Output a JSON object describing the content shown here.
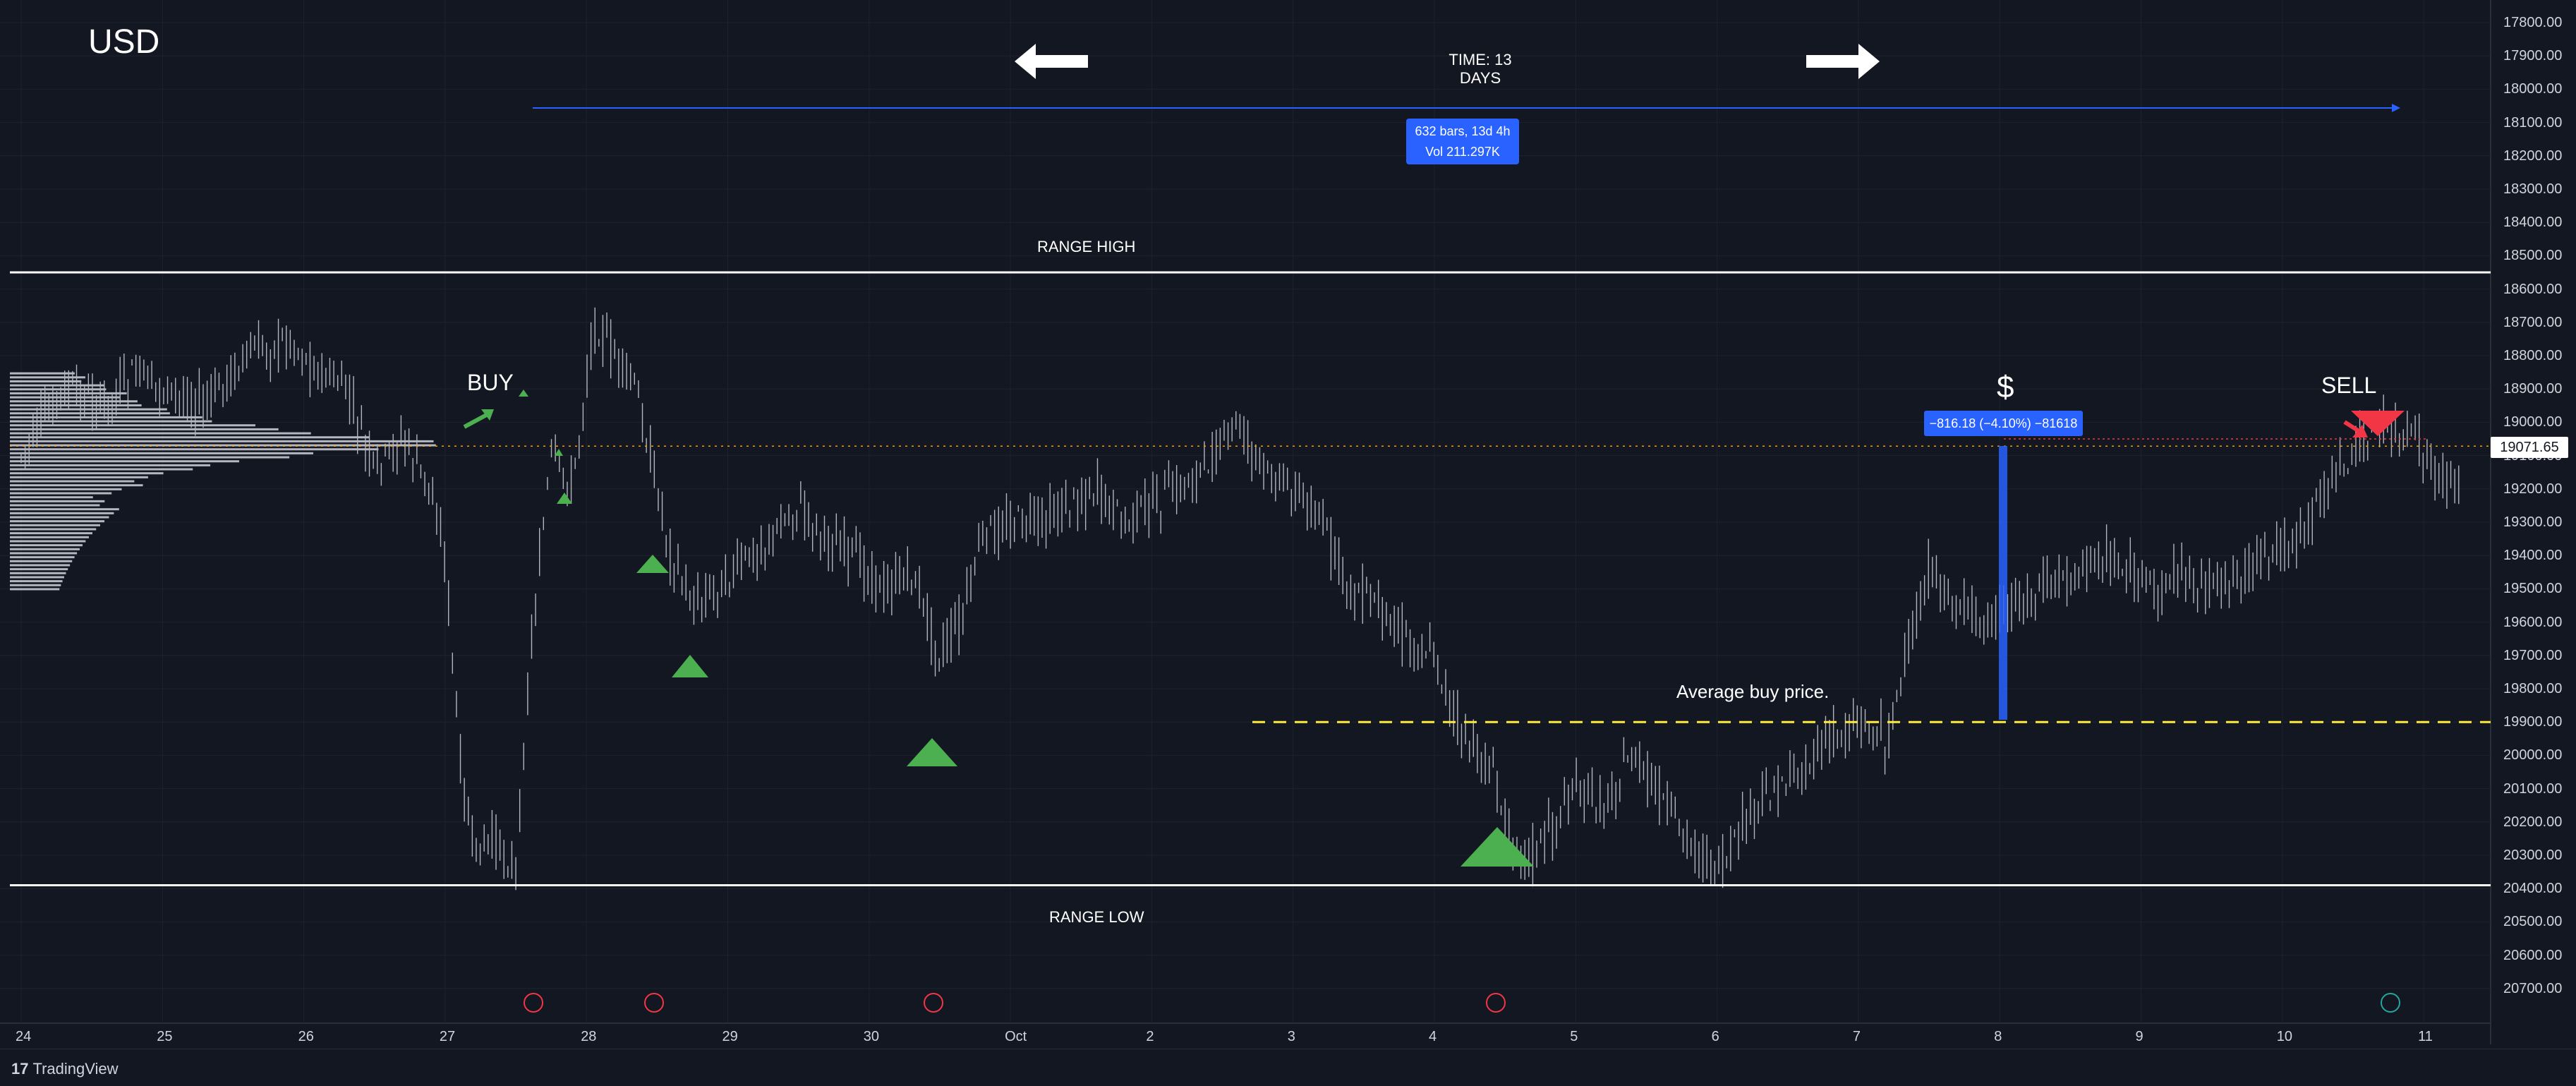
{
  "symbol": "USD",
  "measure": {
    "time_label": "TIME: 13 DAYS",
    "bars_label": "632 bars, 13d 4h",
    "volume_label": "Vol 211.297K",
    "left_arrow_icon": "arrow-left-icon",
    "right_arrow_icon": "arrow-right-icon"
  },
  "annotations": {
    "range_high": "RANGE HIGH",
    "range_low": "RANGE LOW",
    "buy": "BUY",
    "sell": "SELL",
    "dollar": "$",
    "average_buy_price": "Average buy price.",
    "pnl_label": "−816.18 (−4.10%) −81618"
  },
  "price_axis": {
    "ticks": [
      "17800.00",
      "17900.00",
      "18000.00",
      "18100.00",
      "18200.00",
      "18300.00",
      "18400.00",
      "18500.00",
      "18600.00",
      "18700.00",
      "18800.00",
      "18900.00",
      "19000.00",
      "19100.00",
      "19200.00",
      "19300.00",
      "19400.00",
      "19500.00",
      "19600.00",
      "19700.00",
      "19800.00",
      "19900.00",
      "20000.00",
      "20100.00",
      "20200.00",
      "20300.00",
      "20400.00",
      "20500.00",
      "20600.00",
      "20700.00"
    ],
    "last_price": "19071.65"
  },
  "time_axis": {
    "ticks": [
      "24",
      "25",
      "26",
      "27",
      "28",
      "29",
      "30",
      "Oct",
      "2",
      "3",
      "4",
      "5",
      "6",
      "7",
      "8",
      "9",
      "10",
      "11"
    ]
  },
  "footer": {
    "brand": "TradingView",
    "logo_mark": "17"
  },
  "colors": {
    "background": "#131722",
    "candle": "#b2b5be",
    "buy_marker": "#4caf50",
    "sell_marker": "#f23645",
    "avg_line": "#ffeb3b",
    "accent": "#2962ff",
    "level_line": "#ffffff",
    "event_red": "#f23645",
    "event_green": "#26a69a"
  },
  "chart_data": {
    "type": "candlestick",
    "axis": "inverted-price",
    "ylim": [
      17800,
      20750
    ],
    "x_categories": [
      "24",
      "25",
      "26",
      "27",
      "28",
      "29",
      "30",
      "Oct",
      "2",
      "3",
      "4",
      "5",
      "6",
      "7",
      "8",
      "9",
      "10",
      "11"
    ],
    "levels": {
      "range_high": 18550,
      "range_low": 20390,
      "average_buy_price": 19900,
      "last_price": 19071.65,
      "pnl": -816.18,
      "pnl_percent": -4.1
    },
    "close_path": [
      [
        0,
        19100
      ],
      [
        0.3,
        18900
      ],
      [
        0.6,
        18950
      ],
      [
        0.8,
        18850
      ],
      [
        1.0,
        18900
      ],
      [
        1.3,
        18950
      ],
      [
        1.6,
        18800
      ],
      [
        1.9,
        18750
      ],
      [
        2.1,
        18850
      ],
      [
        2.3,
        18900
      ],
      [
        2.5,
        19150
      ],
      [
        2.7,
        19050
      ],
      [
        2.9,
        19200
      ],
      [
        3.0,
        19400
      ],
      [
        3.1,
        20000
      ],
      [
        3.2,
        20300
      ],
      [
        3.35,
        20250
      ],
      [
        3.5,
        20350
      ],
      [
        3.6,
        19700
      ],
      [
        3.75,
        19100
      ],
      [
        3.9,
        19200
      ],
      [
        4.05,
        18700
      ],
      [
        4.2,
        18800
      ],
      [
        4.35,
        18900
      ],
      [
        4.5,
        19200
      ],
      [
        4.6,
        19400
      ],
      [
        4.75,
        19550
      ],
      [
        4.9,
        19500
      ],
      [
        5.05,
        19450
      ],
      [
        5.3,
        19350
      ],
      [
        5.5,
        19250
      ],
      [
        5.7,
        19350
      ],
      [
        5.9,
        19400
      ],
      [
        6.1,
        19500
      ],
      [
        6.3,
        19450
      ],
      [
        6.5,
        19700
      ],
      [
        6.65,
        19600
      ],
      [
        6.8,
        19350
      ],
      [
        7.0,
        19300
      ],
      [
        7.2,
        19300
      ],
      [
        7.4,
        19250
      ],
      [
        7.6,
        19200
      ],
      [
        7.8,
        19300
      ],
      [
        8.0,
        19250
      ],
      [
        8.2,
        19200
      ],
      [
        8.45,
        19100
      ],
      [
        8.6,
        19000
      ],
      [
        8.8,
        19150
      ],
      [
        9.0,
        19200
      ],
      [
        9.2,
        19300
      ],
      [
        9.4,
        19500
      ],
      [
        9.6,
        19550
      ],
      [
        9.8,
        19650
      ],
      [
        10.0,
        19700
      ],
      [
        10.2,
        19950
      ],
      [
        10.4,
        20050
      ],
      [
        10.55,
        20250
      ],
      [
        10.7,
        20300
      ],
      [
        10.85,
        20200
      ],
      [
        11.0,
        20100
      ],
      [
        11.2,
        20150
      ],
      [
        11.4,
        20000
      ],
      [
        11.55,
        20100
      ],
      [
        11.7,
        20200
      ],
      [
        11.9,
        20300
      ],
      [
        12.05,
        20350
      ],
      [
        12.2,
        20200
      ],
      [
        12.4,
        20100
      ],
      [
        12.6,
        20050
      ],
      [
        12.8,
        19950
      ],
      [
        13.0,
        19900
      ],
      [
        13.2,
        19950
      ],
      [
        13.35,
        19700
      ],
      [
        13.5,
        19450
      ],
      [
        13.7,
        19550
      ],
      [
        13.9,
        19600
      ],
      [
        14.1,
        19550
      ],
      [
        14.3,
        19500
      ],
      [
        14.5,
        19450
      ],
      [
        14.7,
        19400
      ],
      [
        14.9,
        19450
      ],
      [
        15.1,
        19500
      ],
      [
        15.3,
        19450
      ],
      [
        15.5,
        19500
      ],
      [
        15.7,
        19450
      ],
      [
        15.9,
        19400
      ],
      [
        16.1,
        19350
      ],
      [
        16.3,
        19200
      ],
      [
        16.5,
        19100
      ],
      [
        16.7,
        19000
      ],
      [
        16.9,
        19050
      ],
      [
        17.1,
        19150
      ],
      [
        17.25,
        19200
      ]
    ]
  }
}
